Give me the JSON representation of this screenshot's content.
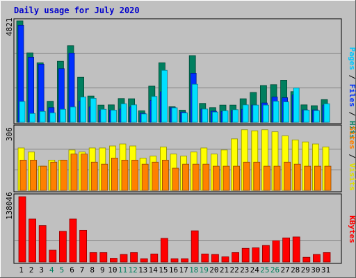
{
  "chart_data": [
    {
      "type": "bar",
      "title": "Daily usage for July 2020",
      "categories": [
        "1",
        "2",
        "3",
        "4",
        "5",
        "6",
        "7",
        "8",
        "9",
        "10",
        "11",
        "12",
        "13",
        "14",
        "15",
        "16",
        "17",
        "18",
        "19",
        "20",
        "21",
        "22",
        "23",
        "24",
        "25",
        "26",
        "27",
        "28",
        "29",
        "30",
        "31"
      ],
      "weekend_categories": [
        "4",
        "5",
        "11",
        "12",
        "18",
        "19",
        "25",
        "26"
      ],
      "ylim": [
        0,
        4821
      ],
      "ytick_label": "4821",
      "series": [
        {
          "name": "Hits",
          "color": "#007f5f",
          "values": [
            4821,
            3300,
            2830,
            1000,
            2900,
            3640,
            2140,
            1250,
            820,
            830,
            1130,
            1120,
            550,
            1720,
            2830,
            740,
            580,
            3170,
            900,
            700,
            820,
            820,
            1120,
            1420,
            1750,
            1790,
            2000,
            1460,
            830,
            790,
            1080
          ]
        },
        {
          "name": "Files",
          "color": "#0030ff",
          "values": [
            4610,
            3090,
            2760,
            700,
            2550,
            3290,
            1000,
            730,
            560,
            580,
            630,
            730,
            430,
            1040,
            1450,
            700,
            490,
            2330,
            630,
            530,
            520,
            560,
            620,
            820,
            920,
            1200,
            1170,
            1300,
            590,
            590,
            820
          ]
        },
        {
          "name": "Pages",
          "color": "#00e0ff",
          "values": [
            990,
            420,
            520,
            450,
            620,
            730,
            1200,
            1140,
            620,
            580,
            880,
            830,
            400,
            1230,
            2470,
            690,
            450,
            1810,
            630,
            490,
            550,
            600,
            830,
            820,
            820,
            1000,
            970,
            1630,
            580,
            560,
            880
          ]
        }
      ],
      "axis_labels": {
        "hits": "Hits",
        "files": "Files",
        "pages": "Pages"
      }
    },
    {
      "type": "bar",
      "ylim": [
        0,
        306
      ],
      "ytick_label": "306",
      "series": [
        {
          "name": "Visits",
          "color": "#ffff00",
          "values": [
            210,
            190,
            120,
            150,
            150,
            200,
            190,
            210,
            210,
            220,
            230,
            220,
            160,
            170,
            215,
            180,
            170,
            190,
            210,
            180,
            200,
            255,
            300,
            295,
            300,
            290,
            270,
            250,
            240,
            230,
            215
          ]
        },
        {
          "name": "Sites",
          "color": "#ff8000",
          "values": [
            150,
            150,
            120,
            140,
            150,
            180,
            180,
            140,
            130,
            160,
            150,
            150,
            130,
            140,
            150,
            110,
            130,
            130,
            130,
            120,
            120,
            120,
            140,
            140,
            120,
            120,
            140,
            130,
            120,
            120,
            120
          ]
        }
      ],
      "axis_labels": {
        "visits": "Visits",
        "sites": "Sites"
      }
    },
    {
      "type": "bar",
      "ylim": [
        0,
        138046
      ],
      "ytick_label": "138046",
      "series": [
        {
          "name": "KBytes",
          "color": "#ff0000",
          "values": [
            138046,
            91000,
            77000,
            25000,
            65000,
            91000,
            67000,
            20000,
            20000,
            8000,
            16000,
            20000,
            7000,
            17000,
            50000,
            7000,
            7000,
            66000,
            17000,
            16000,
            11000,
            20000,
            29000,
            30000,
            35000,
            45000,
            51000,
            53000,
            10000,
            16000,
            20000
          ]
        }
      ],
      "axis_labels": {
        "kbytes": "KBytes"
      }
    }
  ]
}
